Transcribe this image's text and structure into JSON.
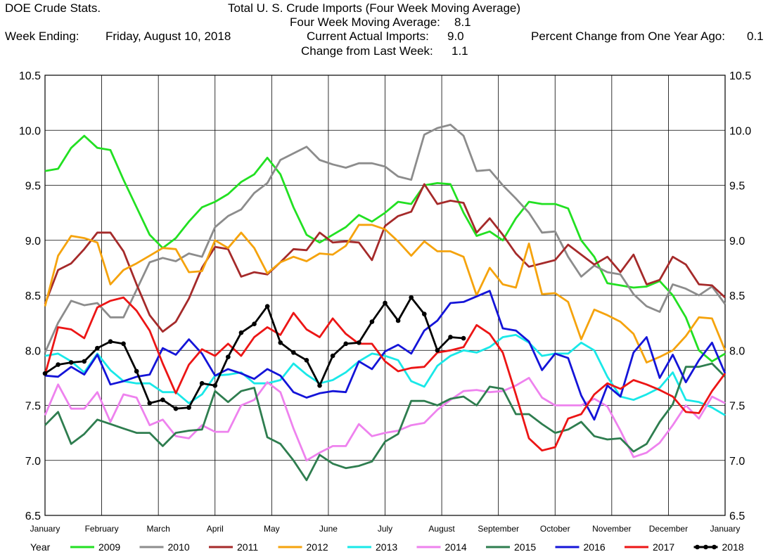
{
  "header": {
    "source": "DOE Crude Stats.",
    "title": "Total U.  S. Crude Imports (Four Week Moving Average)",
    "four_week_label": "Four Week Moving Average:",
    "four_week_value": "8.1",
    "week_ending_label": "Week Ending:",
    "week_ending_value": "Friday, August 10, 2018",
    "current_label": "Current Actual Imports:",
    "current_value": "9.0",
    "change_label": "Change from Last Week:",
    "change_value": "1.1",
    "pct_label": "Percent Change from One Year Ago:",
    "pct_value": "0.1"
  },
  "chart_data": {
    "type": "line",
    "x_unit": "week of year",
    "ylim": [
      6.5,
      10.5
    ],
    "yticks": [
      "10.5",
      "10.0",
      "9.5",
      "9.0",
      "8.5",
      "8.0",
      "7.5",
      "7.0",
      "6.5"
    ],
    "months": [
      "January",
      "February",
      "March",
      "April",
      "May",
      "June",
      "July",
      "August",
      "September",
      "October",
      "November",
      "December",
      "January"
    ],
    "grid": true,
    "legend_title": "Year",
    "legend_position": "bottom",
    "series": [
      {
        "name": "2009",
        "color": "#22e022",
        "values": [
          9.63,
          9.65,
          9.84,
          9.95,
          9.84,
          9.82,
          9.55,
          9.3,
          9.05,
          8.93,
          9.02,
          9.17,
          9.3,
          9.35,
          9.42,
          9.53,
          9.6,
          9.75,
          9.6,
          9.3,
          9.05,
          8.98,
          9.05,
          9.12,
          9.23,
          9.17,
          9.25,
          9.35,
          9.33,
          9.5,
          9.52,
          9.51,
          9.25,
          9.04,
          9.08,
          9.0,
          9.2,
          9.35,
          9.33,
          9.33,
          9.29,
          9.0,
          8.85,
          8.61,
          8.59,
          8.57,
          8.58,
          8.63,
          8.5,
          8.3,
          8.0,
          7.9,
          7.97
        ]
      },
      {
        "name": "2010",
        "color": "#8c8c8c",
        "values": [
          7.98,
          8.25,
          8.45,
          8.41,
          8.43,
          8.3,
          8.3,
          8.55,
          8.8,
          8.84,
          8.81,
          8.88,
          8.85,
          9.12,
          9.22,
          9.28,
          9.43,
          9.52,
          9.73,
          9.79,
          9.85,
          9.73,
          9.69,
          9.66,
          9.7,
          9.7,
          9.67,
          9.58,
          9.55,
          9.96,
          10.02,
          10.05,
          9.95,
          9.63,
          9.64,
          9.5,
          9.38,
          9.25,
          9.07,
          9.08,
          8.85,
          8.67,
          8.77,
          8.71,
          8.69,
          8.51,
          8.4,
          8.35,
          8.6,
          8.56,
          8.5,
          8.58,
          8.42
        ]
      },
      {
        "name": "2011",
        "color": "#a52a2a",
        "values": [
          8.42,
          8.73,
          8.79,
          8.92,
          9.07,
          9.07,
          8.9,
          8.6,
          8.32,
          8.17,
          8.26,
          8.47,
          8.75,
          8.94,
          8.92,
          8.67,
          8.71,
          8.69,
          8.8,
          8.92,
          8.91,
          9.07,
          8.98,
          8.99,
          8.98,
          8.82,
          9.13,
          9.22,
          9.26,
          9.51,
          9.33,
          9.36,
          9.34,
          9.07,
          9.2,
          9.05,
          8.88,
          8.76,
          8.79,
          8.82,
          8.96,
          8.87,
          8.78,
          8.85,
          8.71,
          8.87,
          8.6,
          8.64,
          8.85,
          8.78,
          8.6,
          8.59,
          8.48
        ]
      },
      {
        "name": "2012",
        "color": "#f5a30d",
        "values": [
          8.4,
          8.86,
          9.04,
          9.02,
          8.98,
          8.6,
          8.73,
          8.79,
          8.86,
          8.93,
          8.92,
          8.71,
          8.72,
          9.0,
          8.93,
          9.07,
          8.93,
          8.7,
          8.8,
          8.85,
          8.81,
          8.88,
          8.87,
          8.95,
          9.14,
          9.14,
          9.1,
          8.99,
          8.86,
          8.99,
          8.9,
          8.9,
          8.85,
          8.5,
          8.75,
          8.6,
          8.57,
          8.97,
          8.51,
          8.52,
          8.44,
          8.1,
          8.37,
          8.32,
          8.26,
          8.15,
          7.89,
          7.94,
          8.0,
          8.13,
          8.3,
          8.29,
          8.0
        ]
      },
      {
        "name": "2013",
        "color": "#19e8e8",
        "values": [
          7.95,
          7.97,
          7.9,
          7.8,
          7.97,
          7.82,
          7.72,
          7.7,
          7.7,
          7.62,
          7.62,
          7.52,
          7.6,
          7.77,
          7.78,
          7.8,
          7.7,
          7.7,
          7.73,
          7.88,
          7.78,
          7.7,
          7.73,
          7.8,
          7.9,
          7.97,
          7.95,
          7.91,
          7.72,
          7.67,
          7.86,
          7.95,
          8.0,
          7.98,
          8.03,
          8.12,
          8.14,
          8.07,
          7.95,
          7.97,
          7.97,
          8.07,
          8.0,
          7.76,
          7.58,
          7.55,
          7.6,
          7.66,
          7.8,
          7.55,
          7.53,
          7.48,
          7.41
        ]
      },
      {
        "name": "2014",
        "color": "#ee82ee",
        "values": [
          7.41,
          7.69,
          7.47,
          7.47,
          7.62,
          7.35,
          7.6,
          7.57,
          7.32,
          7.37,
          7.22,
          7.2,
          7.32,
          7.26,
          7.26,
          7.5,
          7.55,
          7.71,
          7.62,
          7.29,
          7.0,
          7.07,
          7.13,
          7.13,
          7.33,
          7.22,
          7.25,
          7.27,
          7.32,
          7.34,
          7.46,
          7.55,
          7.63,
          7.64,
          7.62,
          7.63,
          7.68,
          7.75,
          7.57,
          7.5,
          7.5,
          7.5,
          7.56,
          7.49,
          7.27,
          7.03,
          7.07,
          7.16,
          7.32,
          7.5,
          7.38,
          7.58,
          7.52
        ]
      },
      {
        "name": "2015",
        "color": "#2e7d4f",
        "values": [
          7.32,
          7.44,
          7.15,
          7.24,
          7.37,
          7.33,
          7.29,
          7.25,
          7.25,
          7.13,
          7.25,
          7.27,
          7.28,
          7.63,
          7.53,
          7.63,
          7.66,
          7.21,
          7.15,
          7.0,
          6.82,
          7.05,
          6.97,
          6.93,
          6.95,
          6.99,
          7.17,
          7.24,
          7.54,
          7.54,
          7.5,
          7.56,
          7.58,
          7.5,
          7.67,
          7.65,
          7.42,
          7.42,
          7.33,
          7.25,
          7.28,
          7.35,
          7.22,
          7.19,
          7.2,
          7.08,
          7.15,
          7.35,
          7.51,
          7.85,
          7.85,
          7.88,
          7.76
        ]
      },
      {
        "name": "2016",
        "color": "#1414d8",
        "values": [
          7.77,
          7.76,
          7.85,
          7.78,
          7.96,
          7.69,
          7.72,
          7.76,
          7.78,
          8.02,
          7.96,
          8.1,
          7.97,
          7.77,
          7.83,
          7.79,
          7.74,
          7.83,
          7.77,
          7.62,
          7.57,
          7.61,
          7.63,
          7.62,
          7.9,
          7.83,
          7.99,
          8.05,
          7.97,
          8.18,
          8.27,
          8.43,
          8.44,
          8.49,
          8.54,
          8.2,
          8.18,
          8.08,
          7.82,
          7.97,
          7.93,
          7.59,
          7.37,
          7.68,
          7.58,
          7.98,
          8.12,
          7.75,
          7.96,
          7.71,
          7.91,
          8.07,
          7.79
        ]
      },
      {
        "name": "2017",
        "color": "#ec1515",
        "values": [
          7.78,
          8.21,
          8.19,
          8.11,
          8.39,
          8.45,
          8.48,
          8.36,
          8.18,
          7.88,
          7.61,
          7.87,
          8.01,
          7.95,
          8.06,
          7.95,
          8.12,
          8.21,
          8.14,
          8.34,
          8.19,
          8.12,
          8.29,
          8.15,
          8.06,
          8.06,
          7.9,
          7.81,
          7.84,
          7.85,
          7.98,
          8.0,
          8.03,
          8.23,
          8.15,
          7.98,
          7.6,
          7.2,
          7.09,
          7.12,
          7.38,
          7.42,
          7.6,
          7.7,
          7.65,
          7.73,
          7.69,
          7.64,
          7.58,
          7.44,
          7.43,
          7.63,
          7.79
        ]
      },
      {
        "name": "2018",
        "color": "#000000",
        "values": [
          7.79,
          7.87,
          7.89,
          7.9,
          8.02,
          8.08,
          8.06,
          7.81,
          7.52,
          7.55,
          7.47,
          7.48,
          7.7,
          7.68,
          7.94,
          8.16,
          8.24,
          8.4,
          8.07,
          7.98,
          7.91,
          7.68,
          7.95,
          8.06,
          8.07,
          8.26,
          8.43,
          8.27,
          8.48,
          8.33,
          8.0,
          8.12,
          8.11
        ]
      }
    ]
  }
}
